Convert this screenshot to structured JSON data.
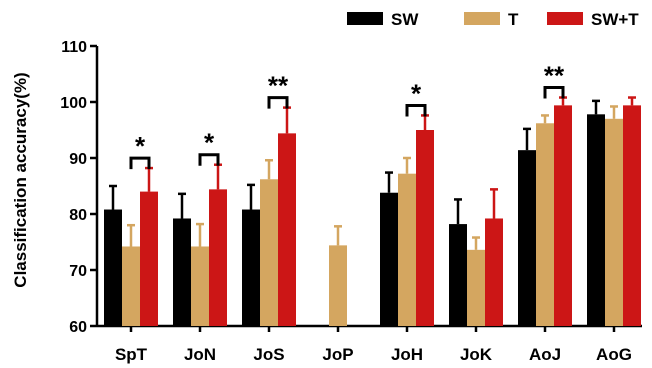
{
  "chart_data": {
    "type": "bar",
    "ylabel": "Classification accuracy(%)",
    "ylim": [
      60,
      110
    ],
    "yticks": [
      60,
      70,
      80,
      90,
      100,
      110
    ],
    "grid": false,
    "legend_position": "top-right",
    "categories": [
      "SpT",
      "JoN",
      "JoS",
      "JoP",
      "JoH",
      "JoK",
      "AoJ",
      "AoG"
    ],
    "series": [
      {
        "name": "SW",
        "color": "#000000",
        "values": [
          80.8,
          79.2,
          80.8,
          null,
          83.8,
          78.2,
          91.4,
          97.8
        ],
        "errors": [
          4.2,
          4.4,
          4.4,
          null,
          3.6,
          4.4,
          3.8,
          2.4
        ]
      },
      {
        "name": "T",
        "color": "#d4a660",
        "values": [
          74.2,
          74.2,
          86.2,
          74.4,
          87.2,
          73.6,
          96.2,
          97.0
        ],
        "errors": [
          3.8,
          4.0,
          3.4,
          3.4,
          2.8,
          2.2,
          1.4,
          2.2
        ]
      },
      {
        "name": "SW+T",
        "color": "#cc1616",
        "values": [
          84.0,
          84.4,
          94.4,
          null,
          95.0,
          79.2,
          99.4,
          99.4
        ],
        "errors": [
          4.2,
          4.4,
          4.6,
          null,
          2.6,
          5.2,
          1.4,
          1.4
        ]
      }
    ],
    "annotations": [
      {
        "category": "SpT",
        "label": "*"
      },
      {
        "category": "JoN",
        "label": "*"
      },
      {
        "category": "JoS",
        "label": "**"
      },
      {
        "category": "JoH",
        "label": "*"
      },
      {
        "category": "AoJ",
        "label": "**"
      }
    ]
  }
}
